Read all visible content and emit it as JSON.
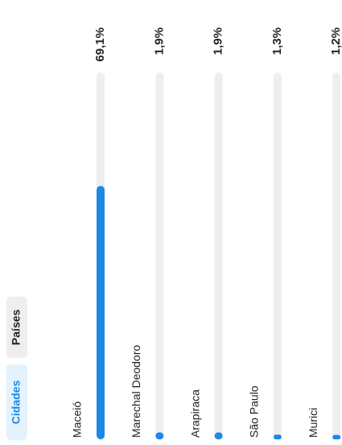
{
  "chart_data": {
    "type": "bar",
    "tabs": [
      "Cidades",
      "Países"
    ],
    "categories": [
      "Maceió",
      "Marechal Deodoro",
      "Arapiraca",
      "São Paulo",
      "Murici"
    ],
    "values": [
      69.1,
      1.9,
      1.9,
      1.3,
      1.2
    ],
    "value_labels": [
      "69,1%",
      "1,9%",
      "1,9%",
      "1,3%",
      "1,2%"
    ],
    "xlim": [
      0,
      100
    ],
    "color": "#1e88e5"
  }
}
